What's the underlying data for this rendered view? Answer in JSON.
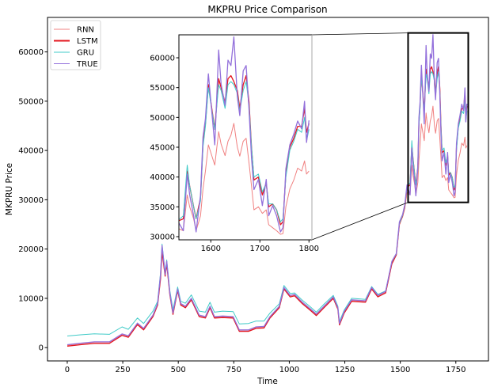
{
  "chart_data": {
    "type": "line",
    "title": "MKPRU Price Comparison",
    "xlabel": "Time",
    "ylabel": "MKPRU Price",
    "xlim": [
      -89,
      1897
    ],
    "ylim": [
      -2700,
      67000
    ],
    "xticks": [
      0,
      250,
      500,
      750,
      1000,
      1250,
      1500,
      1750
    ],
    "yticks": [
      0,
      10000,
      20000,
      30000,
      40000,
      50000,
      60000
    ],
    "grid": false,
    "legend_placement": "upper-left",
    "inset": {
      "xlim": [
        1535,
        1806
      ],
      "ylim": [
        29470,
        63850
      ],
      "xticks": [
        1600,
        1700,
        1800
      ],
      "yticks": [
        30000,
        35000,
        40000,
        45000,
        50000,
        55000,
        60000
      ]
    },
    "x": [
      0,
      60,
      122,
      190,
      247,
      275,
      316,
      344,
      386,
      407,
      420,
      427,
      441,
      448,
      462,
      476,
      497,
      511,
      532,
      559,
      594,
      622,
      643,
      663,
      700,
      747,
      775,
      816,
      850,
      886,
      913,
      955,
      976,
      1004,
      1024,
      1059,
      1094,
      1122,
      1156,
      1198,
      1219,
      1226,
      1247,
      1281,
      1343,
      1371,
      1399,
      1434,
      1462,
      1482,
      1496,
      1510,
      1520,
      1530,
      1544,
      1552,
      1557,
      1565,
      1570,
      1579,
      1584,
      1589,
      1595,
      1608,
      1616,
      1621,
      1629,
      1635,
      1641,
      1647,
      1654,
      1659,
      1666,
      1672,
      1678,
      1683,
      1688,
      1697,
      1705,
      1713,
      1718,
      1726,
      1734,
      1742,
      1747,
      1753,
      1761,
      1769,
      1777,
      1785,
      1791,
      1795,
      1800
    ],
    "series": [
      {
        "name": "RNN",
        "color": "#f08080",
        "values": [
          500,
          800,
          1100,
          1100,
          2700,
          2300,
          4800,
          3800,
          6500,
          8800,
          14300,
          19800,
          14700,
          17200,
          11000,
          7000,
          11700,
          8800,
          8300,
          9900,
          6500,
          6200,
          8300,
          6200,
          6300,
          6200,
          3500,
          3500,
          4100,
          4200,
          6200,
          8300,
          12000,
          10500,
          10700,
          9100,
          7800,
          6700,
          8300,
          10200,
          8000,
          4800,
          7200,
          9600,
          9400,
          12000,
          10500,
          11300,
          17200,
          18900,
          25200,
          26500,
          28200,
          31500,
          31000,
          37000,
          35000,
          33000,
          31000,
          33500,
          38000,
          41000,
          45400,
          42000,
          47600,
          45500,
          43600,
          46000,
          47000,
          49000,
          45000,
          43500,
          46000,
          46500,
          42300,
          38500,
          34500,
          35000,
          33900,
          34500,
          32000,
          31500,
          31000,
          30400,
          30500,
          35000,
          38000,
          39500,
          41500,
          41000,
          42700,
          40500,
          41000
        ]
      },
      {
        "name": "LSTM",
        "color": "#e3151e",
        "values": [
          300,
          600,
          870,
          870,
          2480,
          2100,
          4670,
          3600,
          6300,
          8640,
          14000,
          19500,
          14500,
          17000,
          10800,
          6750,
          11600,
          8640,
          8100,
          9700,
          6300,
          6000,
          8100,
          6000,
          6100,
          6000,
          3300,
          3300,
          3900,
          4000,
          6000,
          8100,
          11900,
          10300,
          10500,
          8900,
          7600,
          6500,
          8100,
          10000,
          7800,
          4600,
          7000,
          9400,
          9200,
          11900,
          10300,
          11100,
          17000,
          18800,
          25000,
          26700,
          28700,
          32500,
          33000,
          41000,
          38500,
          35000,
          33000,
          36500,
          45500,
          49000,
          55500,
          48000,
          56500,
          55000,
          52500,
          56500,
          57000,
          56000,
          54500,
          51500,
          55500,
          57000,
          52500,
          45000,
          39500,
          40000,
          37000,
          39000,
          35000,
          35500,
          34500,
          32000,
          32500,
          40500,
          45000,
          46500,
          48500,
          48500,
          51500,
          47500,
          49000
        ]
      },
      {
        "name": "GRU",
        "color": "#40cbc8",
        "values": [
          2360,
          2600,
          2800,
          2700,
          4200,
          3700,
          6000,
          4900,
          7400,
          9400,
          15200,
          21000,
          15300,
          17800,
          11600,
          7700,
          12300,
          9400,
          9000,
          10700,
          7400,
          7200,
          9200,
          7200,
          7400,
          7300,
          4800,
          4900,
          5400,
          5400,
          7000,
          8900,
          12600,
          11000,
          11100,
          9600,
          8300,
          7200,
          8800,
          10600,
          8400,
          5300,
          7600,
          10000,
          9800,
          12400,
          10800,
          11500,
          17400,
          19000,
          25200,
          26800,
          28800,
          32500,
          33500,
          42000,
          38500,
          35000,
          33000,
          36000,
          45000,
          48500,
          55000,
          48000,
          55500,
          54500,
          51500,
          55500,
          56000,
          55500,
          54000,
          51000,
          54500,
          56000,
          52000,
          45000,
          40000,
          40500,
          37500,
          39000,
          35500,
          35500,
          34500,
          32500,
          33000,
          40000,
          44500,
          46000,
          48000,
          47500,
          50000,
          46000,
          48000
        ]
      },
      {
        "name": "TRUE",
        "color": "#9370db",
        "values": [
          600,
          900,
          1170,
          1170,
          2780,
          2400,
          4970,
          3900,
          6600,
          8940,
          14800,
          20700,
          14800,
          17500,
          11100,
          7050,
          11900,
          8940,
          8400,
          10000,
          6600,
          6300,
          8400,
          6300,
          6400,
          6300,
          3600,
          3600,
          4200,
          4300,
          6300,
          8400,
          12200,
          10600,
          10800,
          9200,
          7900,
          6800,
          8400,
          10300,
          8100,
          4900,
          7300,
          9700,
          9500,
          12200,
          10600,
          11400,
          17500,
          19100,
          25500,
          27000,
          29000,
          33000,
          31000,
          40500,
          37000,
          33500,
          30800,
          37000,
          46700,
          49800,
          57300,
          45400,
          61300,
          55600,
          52000,
          59600,
          58700,
          63500,
          53400,
          50300,
          57800,
          58700,
          51200,
          43200,
          37900,
          39600,
          35200,
          39600,
          33500,
          35200,
          33500,
          30800,
          31500,
          41400,
          45400,
          47200,
          49400,
          48100,
          52700,
          45800,
          49500
        ]
      }
    ]
  }
}
